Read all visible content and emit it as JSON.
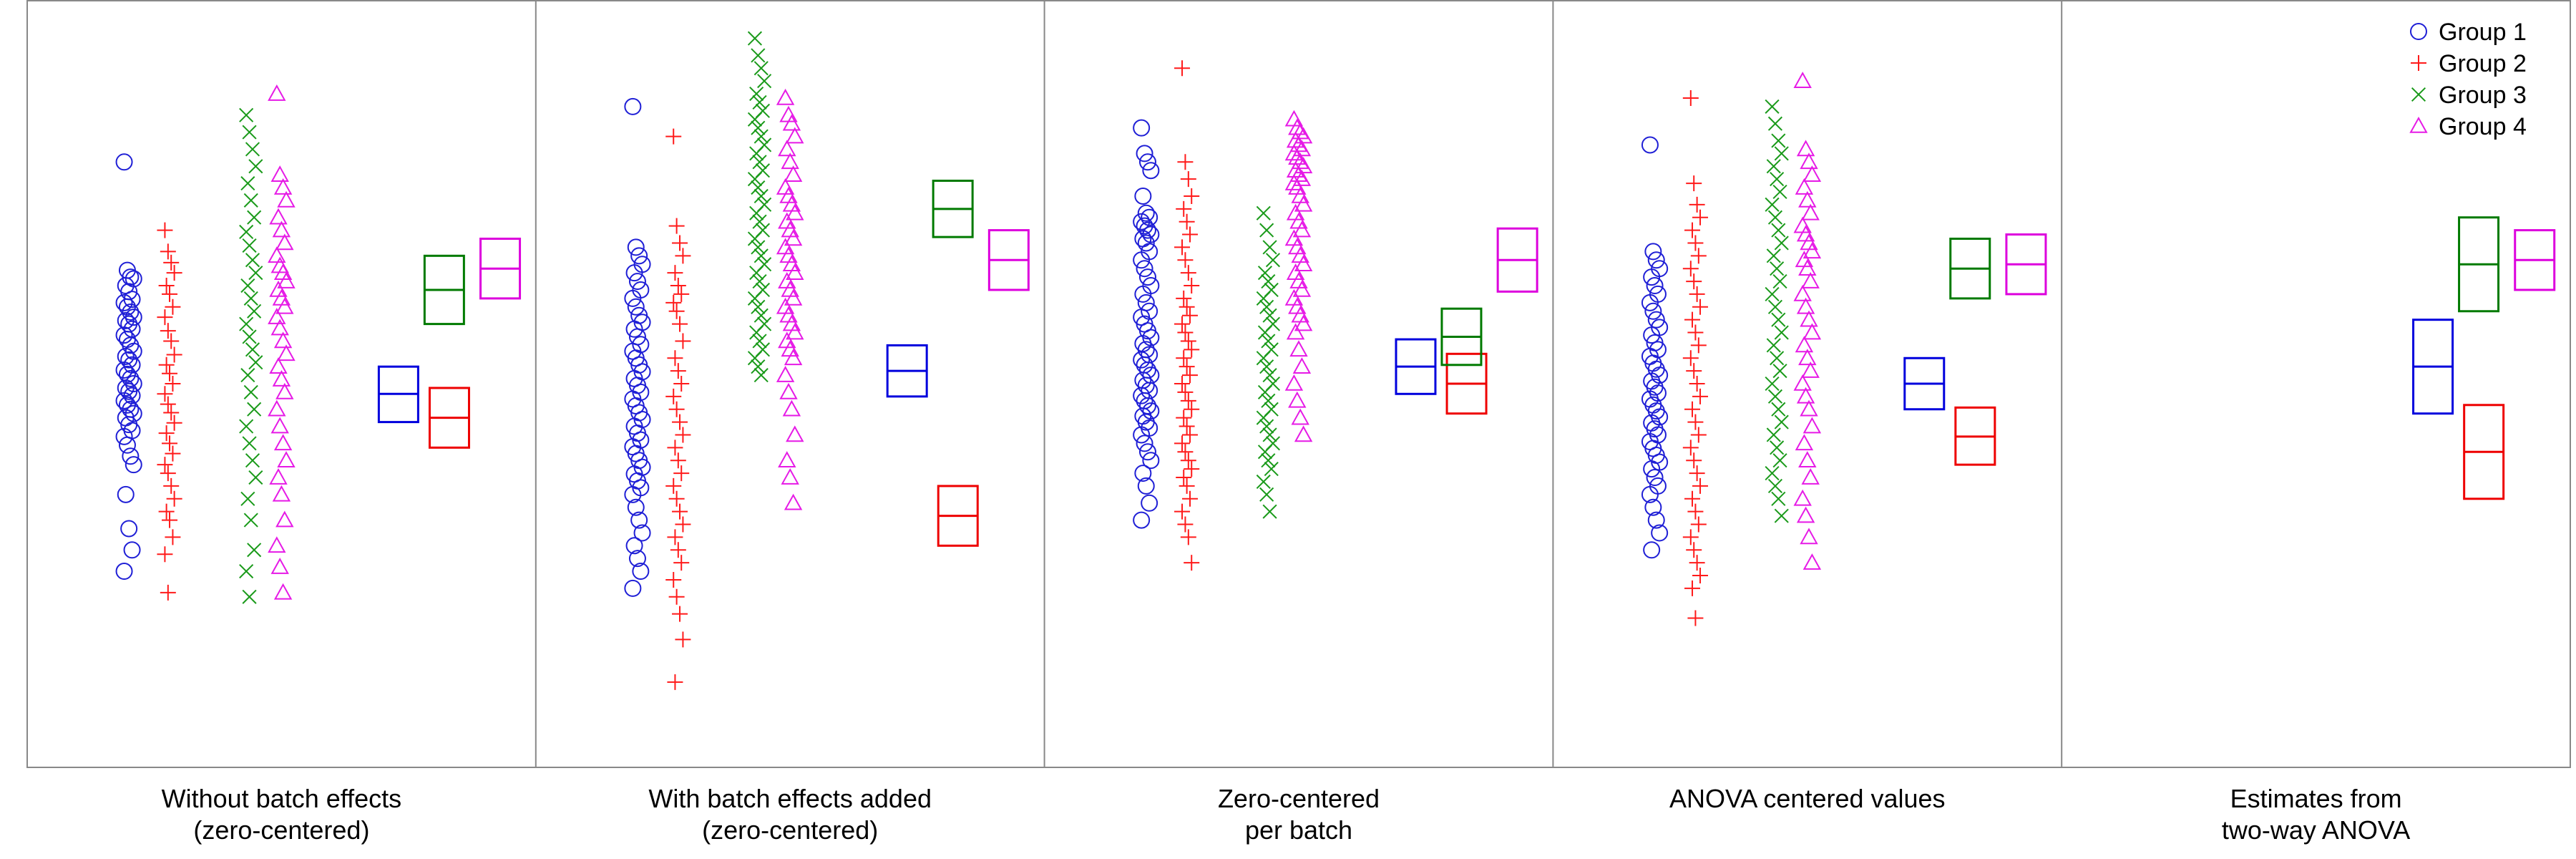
{
  "chart_data": {
    "type": "scatter",
    "legend_position": "top-right",
    "grid": false,
    "groups": [
      {
        "name": "Group 1",
        "marker": "circle",
        "color": "#1f1fd6"
      },
      {
        "name": "Group 2",
        "marker": "plus",
        "color": "#ff1a1a"
      },
      {
        "name": "Group 3",
        "marker": "x",
        "color": "#1a9a1a"
      },
      {
        "name": "Group 4",
        "marker": "triangle",
        "color": "#e61ae6"
      }
    ],
    "box_colors": [
      "#0000dd",
      "#ee0000",
      "#007a00",
      "#dd00dd"
    ],
    "ylim": [
      -4.5,
      4.5
    ],
    "panels": [
      {
        "title_lines": [
          "Without batch effects",
          "(zero-centered)"
        ],
        "groups": [
          {
            "values": [
              2.6,
              1.33,
              1.25,
              1.23,
              1.15,
              1.08,
              0.99,
              0.95,
              0.9,
              0.84,
              0.78,
              0.74,
              0.7,
              0.64,
              0.57,
              0.52,
              0.45,
              0.38,
              0.32,
              0.28,
              0.22,
              0.16,
              0.11,
              0.06,
              0.0,
              -0.05,
              -0.09,
              -0.14,
              -0.2,
              -0.25,
              -0.3,
              -0.35,
              -0.4,
              -0.48,
              -0.55,
              -0.62,
              -0.72,
              -0.85,
              -0.95,
              -1.3,
              -1.7,
              -1.95,
              -2.2
            ],
            "box": {
              "mean": -0.12,
              "lo": -0.45,
              "hi": 0.2
            }
          },
          {
            "values": [
              1.8,
              1.55,
              1.42,
              1.3,
              1.15,
              1.05,
              0.9,
              0.78,
              0.62,
              0.5,
              0.34,
              0.22,
              0.12,
              0.0,
              -0.12,
              -0.24,
              -0.34,
              -0.46,
              -0.58,
              -0.7,
              -0.82,
              -0.95,
              -1.05,
              -1.2,
              -1.35,
              -1.5,
              -1.6,
              -1.8,
              -2.0,
              -2.45
            ],
            "box": {
              "mean": -0.4,
              "lo": -0.75,
              "hi": -0.05
            }
          },
          {
            "values": [
              3.15,
              2.95,
              2.75,
              2.55,
              2.35,
              2.15,
              1.95,
              1.78,
              1.62,
              1.45,
              1.3,
              1.15,
              1.0,
              0.85,
              0.7,
              0.55,
              0.4,
              0.25,
              0.1,
              -0.1,
              -0.3,
              -0.5,
              -0.7,
              -0.9,
              -1.1,
              -1.35,
              -1.6,
              -1.95,
              -2.2,
              -2.5
            ],
            "box": {
              "mean": 1.1,
              "lo": 0.7,
              "hi": 1.5
            }
          },
          {
            "values": [
              3.4,
              2.45,
              2.3,
              2.15,
              1.95,
              1.8,
              1.65,
              1.5,
              1.38,
              1.3,
              1.2,
              1.1,
              1.0,
              0.9,
              0.78,
              0.65,
              0.5,
              0.35,
              0.2,
              0.05,
              -0.1,
              -0.3,
              -0.5,
              -0.7,
              -0.9,
              -1.1,
              -1.3,
              -1.6,
              -1.9,
              -2.15,
              -2.45
            ],
            "box": {
              "mean": 1.35,
              "lo": 1.0,
              "hi": 1.7
            }
          }
        ]
      },
      {
        "title_lines": [
          "With batch effects added",
          "(zero-centered)"
        ],
        "groups": [
          {
            "values": [
              3.25,
              1.6,
              1.5,
              1.4,
              1.3,
              1.2,
              1.1,
              1.0,
              0.9,
              0.8,
              0.72,
              0.64,
              0.55,
              0.46,
              0.38,
              0.3,
              0.22,
              0.14,
              0.06,
              -0.02,
              -0.1,
              -0.18,
              -0.26,
              -0.34,
              -0.42,
              -0.5,
              -0.58,
              -0.66,
              -0.74,
              -0.82,
              -0.9,
              -0.98,
              -1.06,
              -1.14,
              -1.22,
              -1.3,
              -1.45,
              -1.6,
              -1.75,
              -1.9,
              -2.05,
              -2.2,
              -2.4
            ],
            "box": {
              "mean": 0.15,
              "lo": -0.15,
              "hi": 0.45
            }
          },
          {
            "values": [
              2.9,
              1.85,
              1.65,
              1.5,
              1.3,
              1.15,
              1.05,
              0.95,
              0.85,
              0.7,
              0.5,
              0.3,
              0.15,
              0.0,
              -0.15,
              -0.3,
              -0.45,
              -0.6,
              -0.75,
              -0.9,
              -1.05,
              -1.2,
              -1.35,
              -1.5,
              -1.65,
              -1.8,
              -1.95,
              -2.1,
              -2.3,
              -2.5,
              -2.7,
              -3.0,
              -3.5
            ],
            "box": {
              "mean": -1.55,
              "lo": -1.9,
              "hi": -1.2
            }
          },
          {
            "values": [
              4.05,
              3.85,
              3.7,
              3.55,
              3.4,
              3.3,
              3.2,
              3.1,
              3.0,
              2.9,
              2.8,
              2.7,
              2.6,
              2.5,
              2.4,
              2.3,
              2.2,
              2.1,
              2.0,
              1.9,
              1.8,
              1.7,
              1.6,
              1.5,
              1.4,
              1.3,
              1.2,
              1.1,
              1.0,
              0.9,
              0.8,
              0.7,
              0.6,
              0.5,
              0.4,
              0.3,
              0.2,
              0.1
            ],
            "box": {
              "mean": 2.05,
              "lo": 1.72,
              "hi": 2.38
            }
          },
          {
            "values": [
              3.35,
              3.15,
              3.05,
              2.9,
              2.75,
              2.6,
              2.45,
              2.3,
              2.2,
              2.1,
              2.0,
              1.9,
              1.8,
              1.7,
              1.6,
              1.5,
              1.4,
              1.3,
              1.2,
              1.1,
              1.0,
              0.9,
              0.8,
              0.7,
              0.6,
              0.5,
              0.4,
              0.3,
              0.1,
              -0.1,
              -0.3,
              -0.6,
              -0.9,
              -1.1,
              -1.4
            ],
            "box": {
              "mean": 1.45,
              "lo": 1.1,
              "hi": 1.8
            }
          }
        ]
      },
      {
        "title_lines": [
          "Zero-centered",
          "per batch"
        ],
        "groups": [
          {
            "values": [
              3.0,
              2.7,
              2.6,
              2.5,
              2.2,
              2.0,
              1.95,
              1.9,
              1.85,
              1.8,
              1.75,
              1.7,
              1.65,
              1.55,
              1.45,
              1.35,
              1.25,
              1.15,
              1.05,
              0.95,
              0.85,
              0.78,
              0.7,
              0.62,
              0.54,
              0.47,
              0.4,
              0.34,
              0.28,
              0.22,
              0.16,
              0.1,
              0.04,
              -0.02,
              -0.08,
              -0.14,
              -0.2,
              -0.26,
              -0.32,
              -0.38,
              -0.45,
              -0.52,
              -0.6,
              -0.7,
              -0.8,
              -0.9,
              -1.05,
              -1.2,
              -1.4,
              -1.6
            ],
            "box": {
              "mean": 0.2,
              "lo": -0.12,
              "hi": 0.52
            }
          },
          {
            "values": [
              3.7,
              2.6,
              2.4,
              2.2,
              2.05,
              1.9,
              1.75,
              1.6,
              1.45,
              1.3,
              1.15,
              1.0,
              0.9,
              0.8,
              0.7,
              0.6,
              0.5,
              0.4,
              0.3,
              0.2,
              0.1,
              0.0,
              -0.1,
              -0.2,
              -0.3,
              -0.4,
              -0.5,
              -0.6,
              -0.7,
              -0.8,
              -0.9,
              -1.0,
              -1.1,
              -1.2,
              -1.35,
              -1.5,
              -1.65,
              -1.8,
              -2.1
            ],
            "box": {
              "mean": 0.0,
              "lo": -0.35,
              "hi": 0.35
            }
          },
          {
            "values": [
              2.0,
              1.8,
              1.6,
              1.45,
              1.3,
              1.2,
              1.1,
              1.0,
              0.9,
              0.8,
              0.7,
              0.6,
              0.5,
              0.4,
              0.3,
              0.2,
              0.1,
              0.0,
              -0.1,
              -0.2,
              -0.3,
              -0.4,
              -0.5,
              -0.6,
              -0.7,
              -0.8,
              -0.9,
              -1.0,
              -1.15,
              -1.3,
              -1.5
            ],
            "box": {
              "mean": 0.55,
              "lo": 0.22,
              "hi": 0.88
            }
          },
          {
            "values": [
              3.1,
              3.0,
              2.95,
              2.9,
              2.85,
              2.8,
              2.75,
              2.7,
              2.65,
              2.6,
              2.55,
              2.5,
              2.45,
              2.4,
              2.35,
              2.3,
              2.2,
              2.1,
              2.0,
              1.9,
              1.8,
              1.7,
              1.6,
              1.5,
              1.4,
              1.3,
              1.2,
              1.1,
              1.0,
              0.9,
              0.8,
              0.7,
              0.6,
              0.4,
              0.2,
              0.0,
              -0.2,
              -0.4,
              -0.6
            ],
            "box": {
              "mean": 1.45,
              "lo": 1.08,
              "hi": 1.82
            }
          }
        ]
      },
      {
        "title_lines": [
          "ANOVA centered values"
        ],
        "groups": [
          {
            "values": [
              2.8,
              1.55,
              1.45,
              1.35,
              1.25,
              1.15,
              1.05,
              0.95,
              0.85,
              0.75,
              0.66,
              0.57,
              0.48,
              0.4,
              0.32,
              0.24,
              0.17,
              0.1,
              0.03,
              -0.04,
              -0.11,
              -0.18,
              -0.25,
              -0.32,
              -0.39,
              -0.46,
              -0.53,
              -0.6,
              -0.68,
              -0.76,
              -0.84,
              -0.92,
              -1.0,
              -1.1,
              -1.2,
              -1.3,
              -1.45,
              -1.6,
              -1.75,
              -1.95
            ],
            "box": {
              "mean": 0.0,
              "lo": -0.3,
              "hi": 0.3
            }
          },
          {
            "values": [
              3.35,
              2.35,
              2.1,
              1.95,
              1.8,
              1.65,
              1.5,
              1.35,
              1.2,
              1.05,
              0.9,
              0.75,
              0.6,
              0.45,
              0.3,
              0.15,
              0.0,
              -0.15,
              -0.3,
              -0.45,
              -0.6,
              -0.75,
              -0.9,
              -1.05,
              -1.2,
              -1.35,
              -1.5,
              -1.65,
              -1.8,
              -1.95,
              -2.1,
              -2.25,
              -2.4,
              -2.75
            ],
            "box": {
              "mean": -0.62,
              "lo": -0.95,
              "hi": -0.28
            }
          },
          {
            "values": [
              3.25,
              3.05,
              2.85,
              2.7,
              2.55,
              2.4,
              2.25,
              2.1,
              1.95,
              1.8,
              1.65,
              1.5,
              1.35,
              1.2,
              1.05,
              0.9,
              0.75,
              0.6,
              0.45,
              0.3,
              0.15,
              0.0,
              -0.15,
              -0.3,
              -0.45,
              -0.6,
              -0.75,
              -0.9,
              -1.05,
              -1.2,
              -1.35,
              -1.55
            ],
            "box": {
              "mean": 1.35,
              "lo": 1.0,
              "hi": 1.7
            }
          },
          {
            "values": [
              3.55,
              2.75,
              2.6,
              2.45,
              2.3,
              2.15,
              2.0,
              1.85,
              1.75,
              1.65,
              1.55,
              1.45,
              1.35,
              1.2,
              1.05,
              0.9,
              0.75,
              0.6,
              0.45,
              0.3,
              0.15,
              0.0,
              -0.15,
              -0.3,
              -0.5,
              -0.7,
              -0.9,
              -1.1,
              -1.35,
              -1.55,
              -1.8,
              -2.1
            ],
            "box": {
              "mean": 1.4,
              "lo": 1.05,
              "hi": 1.75
            }
          }
        ]
      },
      {
        "title_lines": [
          "Estimates from",
          "two-way ANOVA"
        ],
        "groups": [
          {
            "values": [],
            "box": {
              "mean": 0.2,
              "lo": -0.35,
              "hi": 0.75
            }
          },
          {
            "values": [],
            "box": {
              "mean": -0.8,
              "lo": -1.35,
              "hi": -0.25
            }
          },
          {
            "values": [],
            "box": {
              "mean": 1.4,
              "lo": 0.85,
              "hi": 1.95
            }
          },
          {
            "values": [],
            "box": {
              "mean": 1.45,
              "lo": 1.1,
              "hi": 1.8
            }
          }
        ]
      }
    ]
  }
}
